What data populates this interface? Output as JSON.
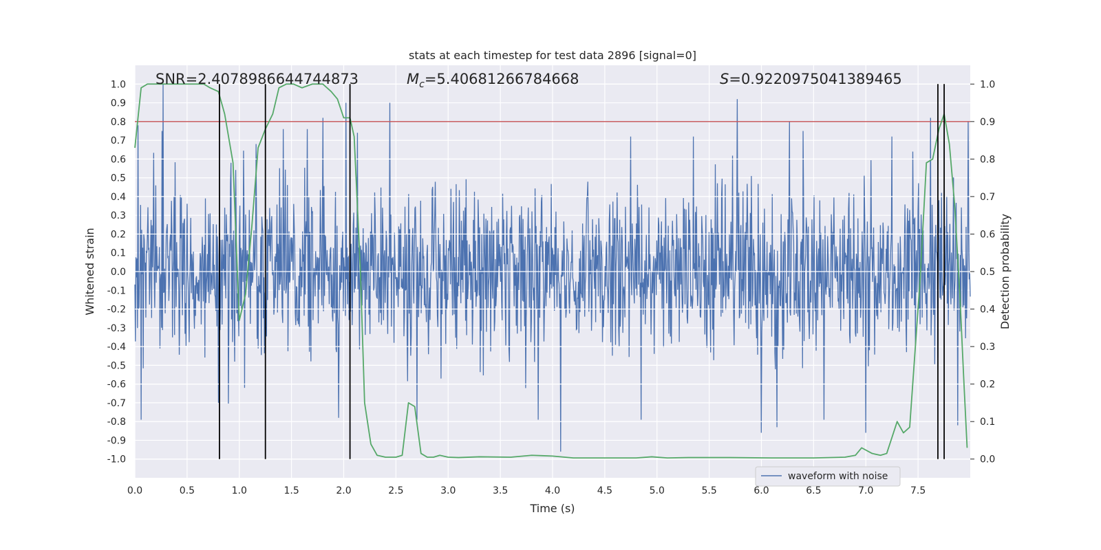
{
  "chart_data": {
    "type": "line",
    "title": "stats at each timestep for test data 2896 [signal=0]",
    "xlabel": "Time (s)",
    "ylabel_left": "Whitened strain",
    "ylabel_right": "Detection probability",
    "xlim": [
      0.0,
      8.0
    ],
    "ylim_left": [
      -1.1,
      1.1
    ],
    "ylim_right": [
      -0.05,
      1.05
    ],
    "x_ticks": [
      "0.0",
      "0.5",
      "1.0",
      "1.5",
      "2.0",
      "2.5",
      "3.0",
      "3.5",
      "4.0",
      "4.5",
      "5.0",
      "5.5",
      "6.0",
      "6.5",
      "7.0",
      "7.5"
    ],
    "y_ticks_left": [
      "-1.0",
      "-0.9",
      "-0.8",
      "-0.7",
      "-0.6",
      "-0.5",
      "-0.4",
      "-0.3",
      "-0.2",
      "-0.1",
      "0.0",
      "0.1",
      "0.2",
      "0.3",
      "0.4",
      "0.5",
      "0.6",
      "0.7",
      "0.8",
      "0.9",
      "1.0"
    ],
    "y_ticks_right": [
      "0.0",
      "0.1",
      "0.2",
      "0.3",
      "0.4",
      "0.5",
      "0.6",
      "0.7",
      "0.8",
      "0.9",
      "1.0"
    ],
    "grid": true,
    "legend": {
      "position": "lower-right",
      "entries": [
        {
          "label": "waveform with noise",
          "color": "#4c72b0"
        }
      ]
    },
    "annotations": {
      "snr": "SNR=2.4078986644744873",
      "mc_symbol": "M",
      "mc_sub": "c",
      "mc_value": "=5.40681266784668",
      "s_symbol": "S",
      "s_value": "=0.9220975041389465"
    },
    "threshold": {
      "value": 0.8,
      "axis": "left",
      "color": "#c44e52"
    },
    "vertical_lines": [
      0.81,
      1.25,
      2.06,
      7.69,
      7.75
    ],
    "vertical_line_range_left": [
      -1.0,
      1.0
    ],
    "series": [
      {
        "name": "waveform with noise",
        "axis": "left",
        "color": "#4c72b0",
        "kind": "noise_trace",
        "n_samples": 1600,
        "sigma": 0.22,
        "spikes": [
          {
            "x": 0.03,
            "y": 0.78
          },
          {
            "x": 0.06,
            "y": -0.79
          },
          {
            "x": 0.27,
            "y": 1.0
          },
          {
            "x": 0.26,
            "y": 0.75
          },
          {
            "x": 0.8,
            "y": -0.7
          },
          {
            "x": 0.92,
            "y": 0.58
          },
          {
            "x": 1.05,
            "y": -0.62
          },
          {
            "x": 1.16,
            "y": 0.68
          },
          {
            "x": 1.42,
            "y": 0.76
          },
          {
            "x": 1.65,
            "y": 0.76
          },
          {
            "x": 1.8,
            "y": 0.82
          },
          {
            "x": 1.95,
            "y": -0.78
          },
          {
            "x": 2.02,
            "y": 0.9
          },
          {
            "x": 2.13,
            "y": 0.74
          },
          {
            "x": 2.44,
            "y": 0.9
          },
          {
            "x": 2.7,
            "y": -0.79
          },
          {
            "x": 3.86,
            "y": -0.79
          },
          {
            "x": 4.08,
            "y": -0.96
          },
          {
            "x": 4.75,
            "y": 0.72
          },
          {
            "x": 4.85,
            "y": -0.79
          },
          {
            "x": 5.35,
            "y": 0.72
          },
          {
            "x": 5.77,
            "y": 0.92
          },
          {
            "x": 6.0,
            "y": -0.86
          },
          {
            "x": 6.27,
            "y": 0.8
          },
          {
            "x": 6.4,
            "y": 0.75
          },
          {
            "x": 6.15,
            "y": -0.83
          },
          {
            "x": 6.6,
            "y": -0.79
          },
          {
            "x": 7.0,
            "y": -0.86
          },
          {
            "x": 7.25,
            "y": 0.72
          },
          {
            "x": 7.45,
            "y": 0.64
          },
          {
            "x": 7.62,
            "y": 0.82
          },
          {
            "x": 7.88,
            "y": -0.82
          },
          {
            "x": 7.98,
            "y": 0.8
          }
        ]
      },
      {
        "name": "detection probability",
        "axis": "right",
        "color": "#55a868",
        "x": [
          0.0,
          0.06,
          0.12,
          0.2,
          0.3,
          0.4,
          0.5,
          0.6,
          0.66,
          0.72,
          0.8,
          0.86,
          0.94,
          1.0,
          1.06,
          1.12,
          1.18,
          1.25,
          1.32,
          1.38,
          1.45,
          1.52,
          1.6,
          1.7,
          1.8,
          1.88,
          1.94,
          2.0,
          2.06,
          2.1,
          2.16,
          2.2,
          2.26,
          2.32,
          2.4,
          2.5,
          2.56,
          2.62,
          2.68,
          2.74,
          2.8,
          2.86,
          2.92,
          3.0,
          3.1,
          3.3,
          3.6,
          3.8,
          3.9,
          4.0,
          4.2,
          4.5,
          4.8,
          4.95,
          5.1,
          5.3,
          5.7,
          6.1,
          6.5,
          6.8,
          6.9,
          6.96,
          7.06,
          7.14,
          7.2,
          7.3,
          7.36,
          7.42,
          7.52,
          7.58,
          7.64,
          7.7,
          7.75,
          7.8,
          7.85,
          7.9,
          7.94,
          7.97
        ],
        "y": [
          0.83,
          0.99,
          1.0,
          1.0,
          1.0,
          1.0,
          1.0,
          1.0,
          1.0,
          0.99,
          0.98,
          0.92,
          0.79,
          0.37,
          0.44,
          0.62,
          0.83,
          0.88,
          0.92,
          0.99,
          1.0,
          1.0,
          0.99,
          1.0,
          1.0,
          0.98,
          0.96,
          0.91,
          0.91,
          0.86,
          0.5,
          0.15,
          0.04,
          0.01,
          0.005,
          0.005,
          0.01,
          0.15,
          0.14,
          0.015,
          0.005,
          0.005,
          0.01,
          0.005,
          0.004,
          0.006,
          0.005,
          0.01,
          0.009,
          0.008,
          0.003,
          0.003,
          0.003,
          0.006,
          0.003,
          0.004,
          0.004,
          0.003,
          0.003,
          0.005,
          0.01,
          0.03,
          0.015,
          0.01,
          0.015,
          0.1,
          0.07,
          0.085,
          0.48,
          0.79,
          0.8,
          0.88,
          0.92,
          0.84,
          0.68,
          0.44,
          0.2,
          0.03
        ]
      }
    ]
  }
}
